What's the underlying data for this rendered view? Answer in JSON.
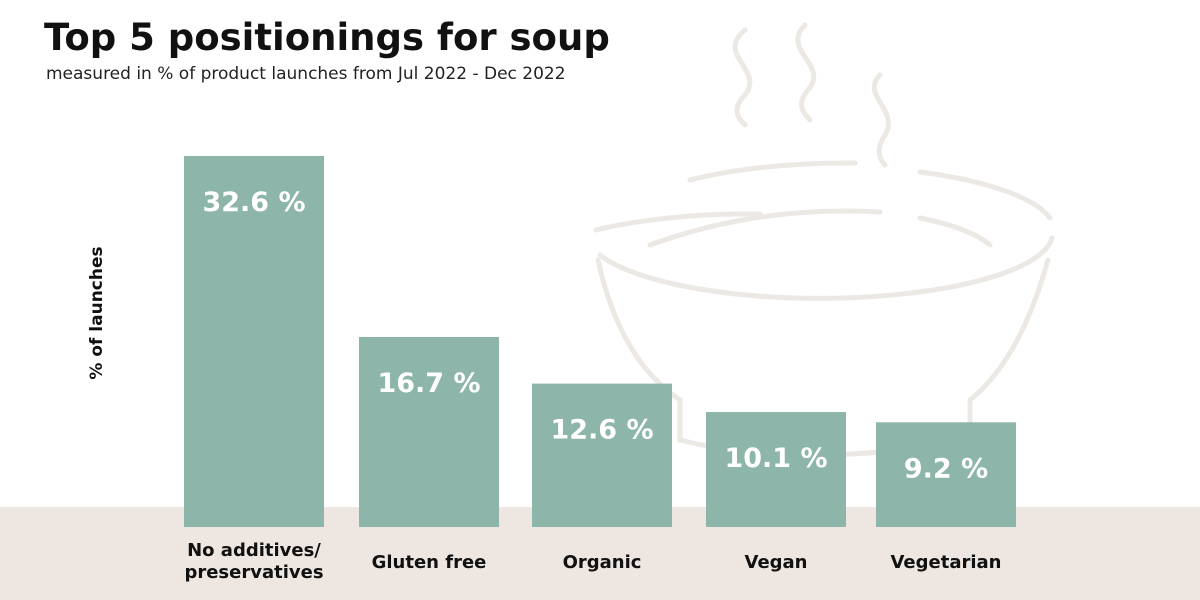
{
  "chart_data": {
    "type": "bar",
    "title": "Top 5 positionings for soup",
    "subtitle": "measured in % of product launches from Jul 2022 - Dec 2022",
    "y_label": "% of launches",
    "categories": [
      "No additives/ preservatives",
      "Gluten free",
      "Organic",
      "Vegan",
      "Vegetarian"
    ],
    "values": [
      32.6,
      16.7,
      12.6,
      10.1,
      9.2
    ],
    "value_labels": [
      "32.6 %",
      "16.7 %",
      "12.6 %",
      "10.1 %",
      "9.2 %"
    ],
    "color": "#8db5aa"
  }
}
